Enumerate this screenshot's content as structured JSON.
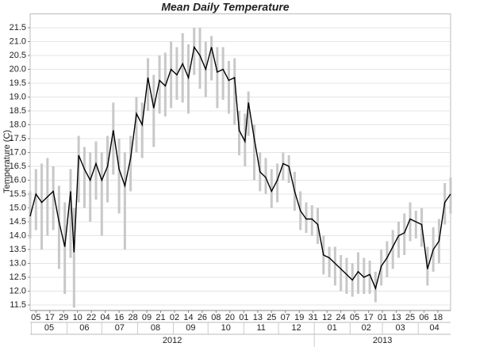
{
  "chart_data": {
    "type": "range-line",
    "title": "Mean Daily Temperature",
    "y_label": "Temperature (C)",
    "x": [
      "2012-04-30",
      "2012-05-05",
      "2012-05-10",
      "2012-05-15",
      "2012-05-20",
      "2012-05-25",
      "2012-05-30",
      "2012-06-04",
      "2012-06-07",
      "2012-06-11",
      "2012-06-16",
      "2012-06-21",
      "2012-06-26",
      "2012-07-01",
      "2012-07-06",
      "2012-07-11",
      "2012-07-16",
      "2012-07-21",
      "2012-07-26",
      "2012-07-31",
      "2012-08-05",
      "2012-08-10",
      "2012-08-15",
      "2012-08-20",
      "2012-08-25",
      "2012-08-30",
      "2012-09-04",
      "2012-09-09",
      "2012-09-14",
      "2012-09-19",
      "2012-09-24",
      "2012-09-29",
      "2012-10-04",
      "2012-10-09",
      "2012-10-14",
      "2012-10-19",
      "2012-10-24",
      "2012-10-28",
      "2012-11-02",
      "2012-11-05",
      "2012-11-10",
      "2012-11-15",
      "2012-11-20",
      "2012-11-25",
      "2012-11-30",
      "2012-12-05",
      "2012-12-10",
      "2012-12-15",
      "2012-12-20",
      "2012-12-25",
      "2012-12-30",
      "2013-01-04",
      "2013-01-09",
      "2013-01-14",
      "2013-01-19",
      "2013-01-24",
      "2013-01-29",
      "2013-02-03",
      "2013-02-08",
      "2013-02-13",
      "2013-02-18",
      "2013-02-23",
      "2013-02-28",
      "2013-03-05",
      "2013-03-10",
      "2013-03-15",
      "2013-03-20",
      "2013-03-25",
      "2013-03-30",
      "2013-04-04",
      "2013-04-09",
      "2013-04-14",
      "2013-04-19",
      "2013-04-24",
      "2013-04-29"
    ],
    "values": [
      14.7,
      15.5,
      15.2,
      15.4,
      15.6,
      14.5,
      13.6,
      15.6,
      13.4,
      16.9,
      16.4,
      16.0,
      16.6,
      16.0,
      16.5,
      17.8,
      16.4,
      15.8,
      16.8,
      18.4,
      18.0,
      19.7,
      18.6,
      19.6,
      19.4,
      20.0,
      19.8,
      20.2,
      19.7,
      20.8,
      20.5,
      20.0,
      20.8,
      19.9,
      20.0,
      19.6,
      19.7,
      17.8,
      17.4,
      18.8,
      17.5,
      16.3,
      16.1,
      15.6,
      16.0,
      16.6,
      16.5,
      15.6,
      14.9,
      14.6,
      14.6,
      14.4,
      13.3,
      13.2,
      13.0,
      12.8,
      12.6,
      12.4,
      12.7,
      12.5,
      12.6,
      12.1,
      12.9,
      13.2,
      13.6,
      14.0,
      14.1,
      14.6,
      14.5,
      14.4,
      12.8,
      13.5,
      13.8,
      15.2,
      15.5
    ],
    "low": [
      13.9,
      14.2,
      13.5,
      14.0,
      14.2,
      12.8,
      11.9,
      13.2,
      11.4,
      15.2,
      15.0,
      14.5,
      15.3,
      14.0,
      15.2,
      16.2,
      14.8,
      13.5,
      15.6,
      17.0,
      16.8,
      18.5,
      17.2,
      18.4,
      18.3,
      18.6,
      18.9,
      18.8,
      18.4,
      19.8,
      19.3,
      19.0,
      19.6,
      18.6,
      18.9,
      18.4,
      18.0,
      16.9,
      16.5,
      17.6,
      16.0,
      15.6,
      15.5,
      15.0,
      15.2,
      16.0,
      15.9,
      14.9,
      14.2,
      14.1,
      14.0,
      13.7,
      12.6,
      12.5,
      12.2,
      12.0,
      11.9,
      11.8,
      11.9,
      11.9,
      11.9,
      11.6,
      12.2,
      12.5,
      12.8,
      13.2,
      13.3,
      13.8,
      13.9,
      13.6,
      12.2,
      12.7,
      13.0,
      14.4,
      14.8
    ],
    "high": [
      15.6,
      16.4,
      16.6,
      16.8,
      16.5,
      15.8,
      15.2,
      16.4,
      15.0,
      17.6,
      17.2,
      17.0,
      17.4,
      17.0,
      17.6,
      18.8,
      17.5,
      17.0,
      17.6,
      19.0,
      18.8,
      20.4,
      19.8,
      20.5,
      20.6,
      21.0,
      20.8,
      21.3,
      20.9,
      21.5,
      21.5,
      21.0,
      21.2,
      20.8,
      20.8,
      20.3,
      20.4,
      18.5,
      18.4,
      19.2,
      18.0,
      17.0,
      16.8,
      16.4,
      16.6,
      17.0,
      16.9,
      16.3,
      15.6,
      15.2,
      15.1,
      15.0,
      14.0,
      13.6,
      13.6,
      13.3,
      13.2,
      13.0,
      13.4,
      13.2,
      13.1,
      12.7,
      13.5,
      13.8,
      14.2,
      14.5,
      14.8,
      15.2,
      14.9,
      15.0,
      13.6,
      14.3,
      14.6,
      15.9,
      16.1
    ],
    "line_color": "#000000",
    "range_color": "#c8c8c8",
    "xlim": [
      "2012-04-30",
      "2013-04-29"
    ],
    "xticks": [
      {
        "value": "2012-05-05",
        "label": "05"
      },
      {
        "value": "2012-05-17",
        "label": "17"
      },
      {
        "value": "2012-05-29",
        "label": "29"
      },
      {
        "value": "2012-06-10",
        "label": "10"
      },
      {
        "value": "2012-06-22",
        "label": "22"
      },
      {
        "value": "2012-07-04",
        "label": "04"
      },
      {
        "value": "2012-07-16",
        "label": "16"
      },
      {
        "value": "2012-07-28",
        "label": "28"
      },
      {
        "value": "2012-08-09",
        "label": "09"
      },
      {
        "value": "2012-08-21",
        "label": "21"
      },
      {
        "value": "2012-09-02",
        "label": "02"
      },
      {
        "value": "2012-09-14",
        "label": "14"
      },
      {
        "value": "2012-09-26",
        "label": "26"
      },
      {
        "value": "2012-10-08",
        "label": "08"
      },
      {
        "value": "2012-10-20",
        "label": "20"
      },
      {
        "value": "2012-11-01",
        "label": "01"
      },
      {
        "value": "2012-11-13",
        "label": "13"
      },
      {
        "value": "2012-11-25",
        "label": "25"
      },
      {
        "value": "2012-12-07",
        "label": "07"
      },
      {
        "value": "2012-12-19",
        "label": "19"
      },
      {
        "value": "2012-12-31",
        "label": "31"
      },
      {
        "value": "2013-01-12",
        "label": "12"
      },
      {
        "value": "2013-01-24",
        "label": "24"
      },
      {
        "value": "2013-02-05",
        "label": "05"
      },
      {
        "value": "2013-02-17",
        "label": "17"
      },
      {
        "value": "2013-03-01",
        "label": "01"
      },
      {
        "value": "2013-03-13",
        "label": "13"
      },
      {
        "value": "2013-03-25",
        "label": "25"
      },
      {
        "value": "2013-04-06",
        "label": "06"
      },
      {
        "value": "2013-04-18",
        "label": "18"
      }
    ],
    "x_months": [
      {
        "value": "2012-05",
        "label": "05"
      },
      {
        "value": "2012-06",
        "label": "06"
      },
      {
        "value": "2012-07",
        "label": "07"
      },
      {
        "value": "2012-08",
        "label": "08"
      },
      {
        "value": "2012-09",
        "label": "09"
      },
      {
        "value": "2012-10",
        "label": "10"
      },
      {
        "value": "2012-11",
        "label": "11"
      },
      {
        "value": "2012-12",
        "label": "12"
      },
      {
        "value": "2013-01",
        "label": "01"
      },
      {
        "value": "2013-02",
        "label": "02"
      },
      {
        "value": "2013-03",
        "label": "03"
      },
      {
        "value": "2013-04",
        "label": "04"
      }
    ],
    "x_years": [
      "2012",
      "2013"
    ],
    "ylim": [
      11.3,
      22.0
    ],
    "yticks": [
      11.5,
      {
        "value": 12,
        "label": "12.0"
      },
      12.5,
      {
        "value": 13,
        "label": "13.0"
      },
      13.5,
      {
        "value": 14,
        "label": "14.0"
      },
      14.5,
      {
        "value": 15,
        "label": "15.0"
      },
      15.5,
      {
        "value": 16,
        "label": "16.0"
      },
      16.5,
      {
        "value": 17,
        "label": "17.0"
      },
      17.5,
      {
        "value": 18,
        "label": "18.0"
      },
      18.5,
      {
        "value": 19,
        "label": "19.0"
      },
      19.5,
      {
        "value": 20,
        "label": "20.0"
      },
      20.5,
      {
        "value": 21,
        "label": "21.0"
      },
      21.5
    ],
    "grid": true
  }
}
